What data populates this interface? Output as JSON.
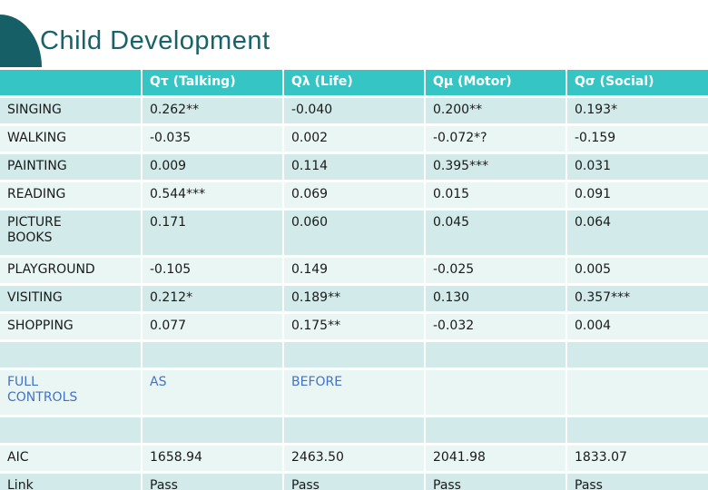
{
  "slide": {
    "title": "Child Development"
  },
  "colors": {
    "header_bg": "#36c5c5",
    "row_band_dark": "#d2ebea",
    "row_band_light": "#e9f6f4",
    "title_text": "#186269",
    "corner_wedge": "#175f66",
    "controls_text_blue": "#4472c4",
    "header_text": "#ffffff",
    "body_text": "#1a1a1a"
  },
  "table": {
    "columns": [
      "",
      "Qτ (Talking)",
      "Qλ (Life)",
      "Qμ (Motor)",
      "Qσ (Social)"
    ],
    "rows": [
      {
        "label": "SINGING",
        "values": [
          "0.262**",
          "-0.040",
          "0.200**",
          "0.193*"
        ]
      },
      {
        "label": "WALKING",
        "values": [
          "-0.035",
          "0.002",
          "-0.072*?",
          "-0.159"
        ]
      },
      {
        "label": "PAINTING",
        "values": [
          "0.009",
          "0.114",
          "0.395***",
          "0.031"
        ]
      },
      {
        "label": "READING",
        "values": [
          "0.544***",
          "0.069",
          "0.015",
          "0.091"
        ]
      },
      {
        "label": "PICTURE BOOKS",
        "values": [
          "0.171",
          "0.060",
          "0.045",
          "0.064"
        ]
      },
      {
        "label": "PLAYGROUND",
        "values": [
          "-0.105",
          "0.149",
          "-0.025",
          "0.005"
        ]
      },
      {
        "label": "VISITING",
        "values": [
          "0.212*",
          "0.189**",
          "0.130",
          "0.357***"
        ]
      },
      {
        "label": "SHOPPING",
        "values": [
          "0.077",
          "0.175**",
          "-0.032",
          "0.004"
        ]
      },
      {
        "label": "",
        "values": [
          "",
          "",
          "",
          ""
        ],
        "spacer": true
      },
      {
        "label": "FULL CONTROLS",
        "values": [
          "AS",
          "BEFORE",
          "",
          ""
        ],
        "text_color": "#4472c4"
      },
      {
        "label": "",
        "values": [
          "",
          "",
          "",
          ""
        ],
        "spacer": true
      },
      {
        "label": "AIC",
        "values": [
          "1658.94",
          "2463.50",
          "2041.98",
          "1833.07"
        ]
      },
      {
        "label": "Link",
        "values": [
          "Pass",
          "Pass",
          "Pass",
          "Pass"
        ]
      }
    ]
  }
}
